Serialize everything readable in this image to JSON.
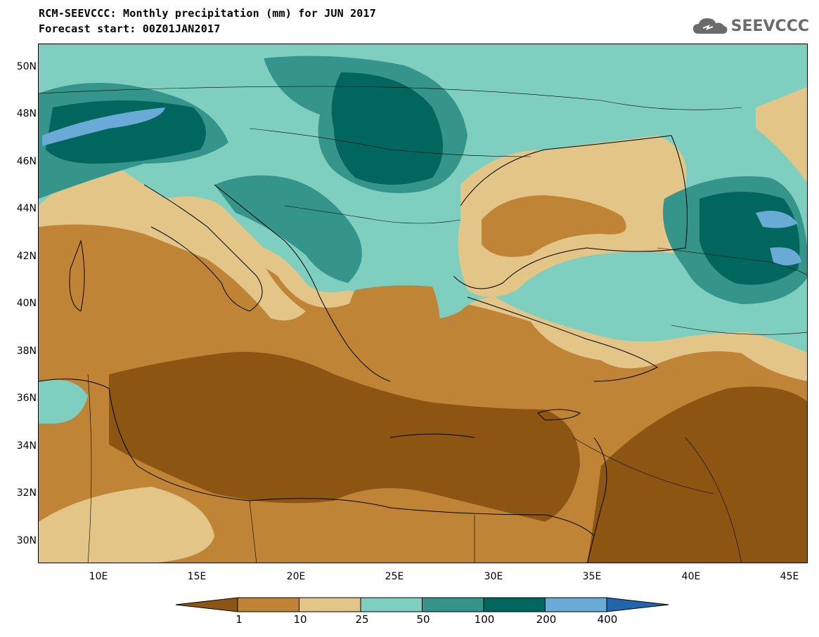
{
  "header": {
    "title_line1": "RCM-SEEVCCC: Monthly precipitation (mm) for JUN 2017",
    "title_line2": "Forecast start: 00Z01JAN2017",
    "logo_text": "SEEVCCC"
  },
  "map": {
    "lat_labels": [
      "50N",
      "48N",
      "46N",
      "44N",
      "42N",
      "40N",
      "38N",
      "36N",
      "34N",
      "32N",
      "30N"
    ],
    "lon_labels": [
      "10E",
      "15E",
      "20E",
      "25E",
      "30E",
      "35E",
      "40E",
      "45E"
    ],
    "lon_range": [
      7,
      46
    ],
    "lat_range": [
      29,
      51
    ]
  },
  "legend": {
    "levels": [
      "1",
      "10",
      "25",
      "50",
      "100",
      "200",
      "400"
    ],
    "colors": [
      "#8c5512",
      "#c08436",
      "#e2c587",
      "#7fcfc0",
      "#35958b",
      "#01665e",
      "#6aaad6",
      "#2166ac"
    ]
  }
}
